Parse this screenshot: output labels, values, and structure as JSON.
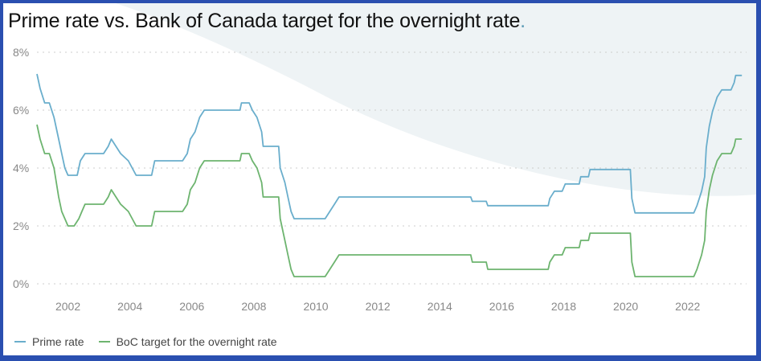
{
  "title": "Prime rate vs. Bank of Canada target for the overnight rate",
  "title_dot": ".",
  "colors": {
    "prime": "#6aaecc",
    "boc": "#6db46f",
    "grid": "#cccccc",
    "background_shape": "#eef3f5",
    "frame": "#2a4fb0",
    "title_dot": "#5a9bb5"
  },
  "chart_data": {
    "type": "line",
    "title": "Prime rate vs. Bank of Canada target for the overnight rate",
    "xlabel": "",
    "ylabel": "",
    "xlim": [
      2001.0,
      2023.9
    ],
    "ylim": [
      0,
      8
    ],
    "x_ticks": [
      2002,
      2004,
      2006,
      2008,
      2010,
      2012,
      2014,
      2016,
      2018,
      2020,
      2022
    ],
    "x_tick_labels": [
      "2002",
      "2004",
      "2006",
      "2008",
      "2010",
      "2012",
      "2014",
      "2016",
      "2018",
      "2020",
      "2022"
    ],
    "y_ticks": [
      0,
      2,
      4,
      6,
      8
    ],
    "y_tick_labels": [
      "0%",
      "2%",
      "4%",
      "6%",
      "8%"
    ],
    "grid": "horizontal dotted",
    "legend_position": "bottom-left",
    "series": [
      {
        "name": "Prime rate",
        "color": "#6aaecc",
        "points": [
          [
            2001.0,
            7.25
          ],
          [
            2001.1,
            6.75
          ],
          [
            2001.25,
            6.25
          ],
          [
            2001.4,
            6.25
          ],
          [
            2001.55,
            5.75
          ],
          [
            2001.7,
            5.0
          ],
          [
            2001.8,
            4.5
          ],
          [
            2001.9,
            4.0
          ],
          [
            2002.0,
            3.75
          ],
          [
            2002.3,
            3.75
          ],
          [
            2002.4,
            4.25
          ],
          [
            2002.55,
            4.5
          ],
          [
            2003.15,
            4.5
          ],
          [
            2003.3,
            4.75
          ],
          [
            2003.4,
            5.0
          ],
          [
            2003.55,
            4.75
          ],
          [
            2003.7,
            4.5
          ],
          [
            2003.95,
            4.25
          ],
          [
            2004.2,
            3.75
          ],
          [
            2004.7,
            3.75
          ],
          [
            2004.8,
            4.25
          ],
          [
            2005.7,
            4.25
          ],
          [
            2005.85,
            4.5
          ],
          [
            2005.95,
            5.0
          ],
          [
            2006.1,
            5.25
          ],
          [
            2006.25,
            5.75
          ],
          [
            2006.4,
            6.0
          ],
          [
            2007.55,
            6.0
          ],
          [
            2007.6,
            6.25
          ],
          [
            2007.85,
            6.25
          ],
          [
            2007.95,
            6.0
          ],
          [
            2008.1,
            5.75
          ],
          [
            2008.25,
            5.25
          ],
          [
            2008.3,
            4.75
          ],
          [
            2008.8,
            4.75
          ],
          [
            2008.85,
            4.0
          ],
          [
            2009.0,
            3.5
          ],
          [
            2009.1,
            3.0
          ],
          [
            2009.2,
            2.5
          ],
          [
            2009.3,
            2.25
          ],
          [
            2010.3,
            2.25
          ],
          [
            2010.45,
            2.5
          ],
          [
            2010.6,
            2.75
          ],
          [
            2010.75,
            3.0
          ],
          [
            2015.0,
            3.0
          ],
          [
            2015.05,
            2.85
          ],
          [
            2015.5,
            2.85
          ],
          [
            2015.55,
            2.7
          ],
          [
            2017.5,
            2.7
          ],
          [
            2017.55,
            2.95
          ],
          [
            2017.7,
            3.2
          ],
          [
            2017.95,
            3.2
          ],
          [
            2018.05,
            3.45
          ],
          [
            2018.5,
            3.45
          ],
          [
            2018.55,
            3.7
          ],
          [
            2018.8,
            3.7
          ],
          [
            2018.85,
            3.95
          ],
          [
            2020.15,
            3.95
          ],
          [
            2020.2,
            2.95
          ],
          [
            2020.3,
            2.45
          ],
          [
            2022.2,
            2.45
          ],
          [
            2022.3,
            2.7
          ],
          [
            2022.45,
            3.2
          ],
          [
            2022.55,
            3.7
          ],
          [
            2022.6,
            4.7
          ],
          [
            2022.7,
            5.45
          ],
          [
            2022.8,
            5.95
          ],
          [
            2022.95,
            6.45
          ],
          [
            2023.1,
            6.7
          ],
          [
            2023.4,
            6.7
          ],
          [
            2023.5,
            6.95
          ],
          [
            2023.55,
            7.2
          ],
          [
            2023.75,
            7.2
          ]
        ]
      },
      {
        "name": "BoC target for the overnight rate",
        "color": "#6db46f",
        "points": [
          [
            2001.0,
            5.5
          ],
          [
            2001.1,
            5.0
          ],
          [
            2001.25,
            4.5
          ],
          [
            2001.4,
            4.5
          ],
          [
            2001.55,
            4.0
          ],
          [
            2001.7,
            3.0
          ],
          [
            2001.8,
            2.5
          ],
          [
            2001.9,
            2.25
          ],
          [
            2002.0,
            2.0
          ],
          [
            2002.2,
            2.0
          ],
          [
            2002.35,
            2.25
          ],
          [
            2002.45,
            2.5
          ],
          [
            2002.55,
            2.75
          ],
          [
            2003.15,
            2.75
          ],
          [
            2003.3,
            3.0
          ],
          [
            2003.4,
            3.25
          ],
          [
            2003.55,
            3.0
          ],
          [
            2003.7,
            2.75
          ],
          [
            2003.95,
            2.5
          ],
          [
            2004.2,
            2.0
          ],
          [
            2004.7,
            2.0
          ],
          [
            2004.8,
            2.5
          ],
          [
            2005.7,
            2.5
          ],
          [
            2005.85,
            2.75
          ],
          [
            2005.95,
            3.25
          ],
          [
            2006.1,
            3.5
          ],
          [
            2006.25,
            4.0
          ],
          [
            2006.4,
            4.25
          ],
          [
            2007.55,
            4.25
          ],
          [
            2007.6,
            4.5
          ],
          [
            2007.85,
            4.5
          ],
          [
            2007.95,
            4.25
          ],
          [
            2008.1,
            4.0
          ],
          [
            2008.25,
            3.5
          ],
          [
            2008.3,
            3.0
          ],
          [
            2008.8,
            3.0
          ],
          [
            2008.85,
            2.25
          ],
          [
            2009.0,
            1.5
          ],
          [
            2009.1,
            1.0
          ],
          [
            2009.2,
            0.5
          ],
          [
            2009.3,
            0.25
          ],
          [
            2010.3,
            0.25
          ],
          [
            2010.45,
            0.5
          ],
          [
            2010.6,
            0.75
          ],
          [
            2010.75,
            1.0
          ],
          [
            2015.0,
            1.0
          ],
          [
            2015.05,
            0.75
          ],
          [
            2015.5,
            0.75
          ],
          [
            2015.55,
            0.5
          ],
          [
            2017.5,
            0.5
          ],
          [
            2017.55,
            0.75
          ],
          [
            2017.7,
            1.0
          ],
          [
            2017.95,
            1.0
          ],
          [
            2018.05,
            1.25
          ],
          [
            2018.5,
            1.25
          ],
          [
            2018.55,
            1.5
          ],
          [
            2018.8,
            1.5
          ],
          [
            2018.85,
            1.75
          ],
          [
            2020.15,
            1.75
          ],
          [
            2020.2,
            0.75
          ],
          [
            2020.3,
            0.25
          ],
          [
            2022.2,
            0.25
          ],
          [
            2022.3,
            0.5
          ],
          [
            2022.45,
            1.0
          ],
          [
            2022.55,
            1.5
          ],
          [
            2022.6,
            2.5
          ],
          [
            2022.7,
            3.25
          ],
          [
            2022.8,
            3.75
          ],
          [
            2022.95,
            4.25
          ],
          [
            2023.1,
            4.5
          ],
          [
            2023.4,
            4.5
          ],
          [
            2023.5,
            4.75
          ],
          [
            2023.55,
            5.0
          ],
          [
            2023.75,
            5.0
          ]
        ]
      }
    ]
  },
  "legend": {
    "prime_label": "Prime rate",
    "boc_label": "BoC target for the overnight rate"
  }
}
